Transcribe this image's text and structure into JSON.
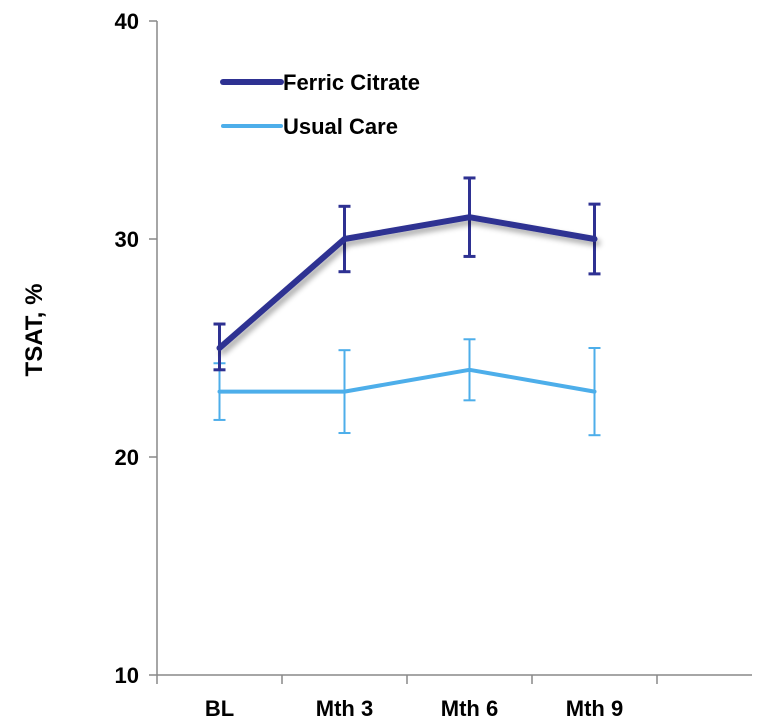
{
  "chart_data": {
    "type": "line",
    "categories": [
      "BL",
      "Mth 3",
      "Mth 6",
      "Mth 9"
    ],
    "ylabel": "TSAT, %",
    "xlabel": "",
    "ylim": [
      10,
      40
    ],
    "yticks": [
      10,
      20,
      30,
      40
    ],
    "grid": false,
    "legend_position": "top-left",
    "series": [
      {
        "name": "Ferric Citrate",
        "color": "#2e3192",
        "values": [
          25,
          30,
          31,
          30
        ],
        "error_low": [
          24,
          28.5,
          29.2,
          28.4
        ],
        "error_high": [
          26.1,
          31.5,
          32.8,
          31.6
        ]
      },
      {
        "name": "Usual Care",
        "color": "#4daeea",
        "values": [
          23,
          23,
          24,
          23
        ],
        "error_low": [
          21.7,
          21.1,
          22.6,
          21
        ],
        "error_high": [
          24.3,
          24.9,
          25.4,
          25
        ]
      }
    ]
  }
}
